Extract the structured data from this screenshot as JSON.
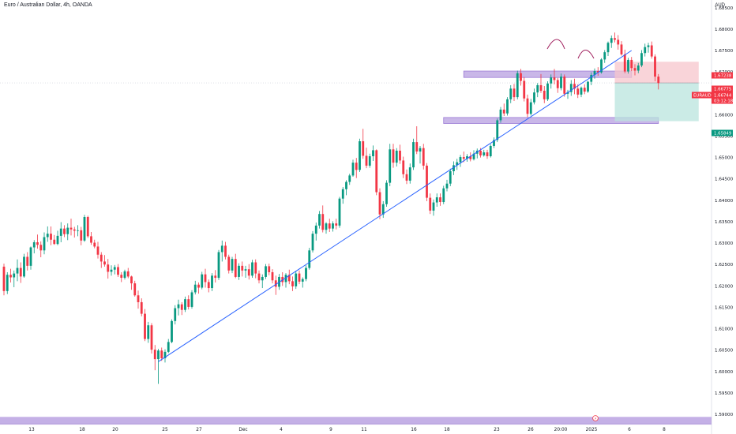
{
  "header": {
    "title": "Euro / Australian Dollar, 4h, OANDA",
    "currency": "AUD"
  },
  "chart_data": {
    "type": "candlestick",
    "symbol": "EURAUD",
    "y_range": [
      1.5878,
      1.6868
    ],
    "y_ticks": [
      "1.68500",
      "1.68000",
      "1.67500",
      "1.67000",
      "1.66500",
      "1.66000",
      "1.65500",
      "1.65000",
      "1.64500",
      "1.64000",
      "1.63500",
      "1.63000",
      "1.62500",
      "1.62000",
      "1.61500",
      "1.61000",
      "1.60500",
      "1.60000",
      "1.59500",
      "1.59000"
    ],
    "x_ticks": [
      "13",
      "18",
      "20",
      "25",
      "27",
      "Dec",
      "4",
      "9",
      "11",
      "16",
      "18",
      "23",
      "26",
      "20:00",
      "2025",
      "6",
      "8"
    ],
    "price_labels": [
      {
        "key": "upper",
        "price": 1.67238,
        "text": "1.67238",
        "color": "#f23645"
      },
      {
        "key": "current",
        "price": 1.66775,
        "text": "1.66775",
        "color": "#f23645"
      },
      {
        "key": "symbol",
        "price": 1.66744,
        "text": "1.66744",
        "symbol": "EURAUD",
        "countdown": "03:12:18",
        "color": "#f23645"
      },
      {
        "key": "target",
        "price": 1.65849,
        "text": "1.65849",
        "color": "#089981"
      }
    ],
    "colors": {
      "up": "#089981",
      "down": "#f23645",
      "trendline": "#2962ff",
      "zone": "#9c7cd6",
      "stop_zone": "#f7c6cc",
      "target_zone": "#b9e4dd",
      "head_shoulders": "#a0205e"
    },
    "candles": [
      [
        1.6245,
        1.6252,
        1.6178,
        1.6188
      ],
      [
        1.6188,
        1.6232,
        1.6181,
        1.6226
      ],
      [
        1.6226,
        1.624,
        1.6208,
        1.622
      ],
      [
        1.622,
        1.6236,
        1.6197,
        1.6229
      ],
      [
        1.6229,
        1.6262,
        1.6211,
        1.6242
      ],
      [
        1.6242,
        1.6255,
        1.6207,
        1.6222
      ],
      [
        1.6222,
        1.6275,
        1.6219,
        1.6268
      ],
      [
        1.6268,
        1.6279,
        1.6236,
        1.6247
      ],
      [
        1.6247,
        1.6292,
        1.6238,
        1.629
      ],
      [
        1.629,
        1.6307,
        1.6276,
        1.6302
      ],
      [
        1.6302,
        1.632,
        1.6287,
        1.6296
      ],
      [
        1.6296,
        1.6304,
        1.6267,
        1.6283
      ],
      [
        1.6283,
        1.6325,
        1.6274,
        1.6314
      ],
      [
        1.6314,
        1.6339,
        1.6303,
        1.6322
      ],
      [
        1.6322,
        1.6339,
        1.6295,
        1.6308
      ],
      [
        1.6308,
        1.6319,
        1.6296,
        1.6298
      ],
      [
        1.6298,
        1.6329,
        1.6295,
        1.6317
      ],
      [
        1.6317,
        1.6349,
        1.6302,
        1.6334
      ],
      [
        1.6334,
        1.6342,
        1.6314,
        1.6321
      ],
      [
        1.6321,
        1.6346,
        1.6307,
        1.6336
      ],
      [
        1.6336,
        1.6357,
        1.6318,
        1.6332
      ],
      [
        1.6332,
        1.6338,
        1.6313,
        1.6329
      ],
      [
        1.6329,
        1.6342,
        1.6316,
        1.633
      ],
      [
        1.633,
        1.6338,
        1.6295,
        1.6306
      ],
      [
        1.6306,
        1.6366,
        1.6303,
        1.6361
      ],
      [
        1.6361,
        1.6364,
        1.6312,
        1.6316
      ],
      [
        1.6316,
        1.6326,
        1.6296,
        1.6301
      ],
      [
        1.6301,
        1.6308,
        1.6288,
        1.6292
      ],
      [
        1.6292,
        1.6303,
        1.6264,
        1.6273
      ],
      [
        1.6273,
        1.6279,
        1.6242,
        1.6257
      ],
      [
        1.6257,
        1.6272,
        1.6245,
        1.625
      ],
      [
        1.625,
        1.6263,
        1.6217,
        1.6233
      ],
      [
        1.6233,
        1.6248,
        1.6224,
        1.6238
      ],
      [
        1.6238,
        1.6249,
        1.6227,
        1.6244
      ],
      [
        1.6244,
        1.6251,
        1.6221,
        1.6226
      ],
      [
        1.6226,
        1.6232,
        1.6209,
        1.6219
      ],
      [
        1.6219,
        1.6238,
        1.6215,
        1.6234
      ],
      [
        1.6234,
        1.6242,
        1.6218,
        1.6222
      ],
      [
        1.6222,
        1.6224,
        1.6191,
        1.6206
      ],
      [
        1.6206,
        1.6212,
        1.6175,
        1.6178
      ],
      [
        1.6178,
        1.6189,
        1.6147,
        1.6162
      ],
      [
        1.6162,
        1.6171,
        1.6129,
        1.6135
      ],
      [
        1.6135,
        1.6146,
        1.6071,
        1.6076
      ],
      [
        1.6076,
        1.6116,
        1.6067,
        1.6108
      ],
      [
        1.6108,
        1.6113,
        1.6042,
        1.6051
      ],
      [
        1.6051,
        1.6062,
        1.6003,
        1.6029
      ],
      [
        1.6029,
        1.6053,
        1.5971,
        1.6049
      ],
      [
        1.6049,
        1.6056,
        1.6025,
        1.6031
      ],
      [
        1.6031,
        1.6052,
        1.6021,
        1.6046
      ],
      [
        1.6046,
        1.6076,
        1.6043,
        1.6069
      ],
      [
        1.6069,
        1.6122,
        1.6066,
        1.6118
      ],
      [
        1.6118,
        1.6155,
        1.611,
        1.6148
      ],
      [
        1.6148,
        1.6168,
        1.6131,
        1.6157
      ],
      [
        1.6157,
        1.6162,
        1.6132,
        1.6144
      ],
      [
        1.6144,
        1.6175,
        1.6139,
        1.6169
      ],
      [
        1.6169,
        1.6178,
        1.6145,
        1.6151
      ],
      [
        1.6151,
        1.619,
        1.6147,
        1.6185
      ],
      [
        1.6185,
        1.6212,
        1.618,
        1.6203
      ],
      [
        1.6203,
        1.6208,
        1.6182,
        1.6196
      ],
      [
        1.6196,
        1.6233,
        1.6192,
        1.6227
      ],
      [
        1.6227,
        1.624,
        1.6196,
        1.6209
      ],
      [
        1.6209,
        1.6215,
        1.6185,
        1.6195
      ],
      [
        1.6195,
        1.623,
        1.6188,
        1.6224
      ],
      [
        1.6224,
        1.6237,
        1.6208,
        1.6219
      ],
      [
        1.6219,
        1.6284,
        1.6214,
        1.6279
      ],
      [
        1.6279,
        1.6306,
        1.6257,
        1.6294
      ],
      [
        1.6294,
        1.6303,
        1.6262,
        1.6268
      ],
      [
        1.6268,
        1.6273,
        1.6229,
        1.6236
      ],
      [
        1.6236,
        1.6268,
        1.623,
        1.6263
      ],
      [
        1.6263,
        1.6275,
        1.6218,
        1.6221
      ],
      [
        1.6221,
        1.6253,
        1.6214,
        1.6247
      ],
      [
        1.6247,
        1.6257,
        1.6222,
        1.6236
      ],
      [
        1.6236,
        1.6247,
        1.6219,
        1.6239
      ],
      [
        1.6239,
        1.6251,
        1.6215,
        1.6224
      ],
      [
        1.6224,
        1.6261,
        1.6219,
        1.6255
      ],
      [
        1.6255,
        1.6262,
        1.6218,
        1.6229
      ],
      [
        1.6229,
        1.6236,
        1.6206,
        1.6213
      ],
      [
        1.6213,
        1.6227,
        1.6195,
        1.6221
      ],
      [
        1.6221,
        1.6251,
        1.6216,
        1.6246
      ],
      [
        1.6246,
        1.6252,
        1.6225,
        1.6232
      ],
      [
        1.6232,
        1.6239,
        1.6206,
        1.6213
      ],
      [
        1.6213,
        1.6224,
        1.6179,
        1.6198
      ],
      [
        1.6198,
        1.6228,
        1.6191,
        1.6221
      ],
      [
        1.6221,
        1.6232,
        1.62,
        1.6209
      ],
      [
        1.6209,
        1.623,
        1.6196,
        1.6226
      ],
      [
        1.6226,
        1.6238,
        1.6204,
        1.6211
      ],
      [
        1.6211,
        1.6222,
        1.6188,
        1.6199
      ],
      [
        1.6199,
        1.6234,
        1.6193,
        1.6229
      ],
      [
        1.6229,
        1.6236,
        1.6204,
        1.621
      ],
      [
        1.621,
        1.622,
        1.6196,
        1.6216
      ],
      [
        1.6216,
        1.6248,
        1.6211,
        1.6242
      ],
      [
        1.6242,
        1.6289,
        1.6238,
        1.6283
      ],
      [
        1.6283,
        1.6328,
        1.6278,
        1.6322
      ],
      [
        1.6322,
        1.6348,
        1.6306,
        1.6341
      ],
      [
        1.6341,
        1.6375,
        1.6334,
        1.6368
      ],
      [
        1.6368,
        1.6388,
        1.6325,
        1.6331
      ],
      [
        1.6331,
        1.6349,
        1.6322,
        1.6346
      ],
      [
        1.6346,
        1.6357,
        1.6326,
        1.6334
      ],
      [
        1.6334,
        1.6351,
        1.6327,
        1.6346
      ],
      [
        1.6346,
        1.6357,
        1.6332,
        1.6341
      ],
      [
        1.6341,
        1.6408,
        1.6336,
        1.6404
      ],
      [
        1.6404,
        1.6431,
        1.6392,
        1.6426
      ],
      [
        1.6426,
        1.6447,
        1.6412,
        1.6443
      ],
      [
        1.6443,
        1.6462,
        1.6436,
        1.6458
      ],
      [
        1.6458,
        1.6495,
        1.6455,
        1.6488
      ],
      [
        1.6488,
        1.6499,
        1.6452,
        1.6471
      ],
      [
        1.6471,
        1.6544,
        1.6466,
        1.6538
      ],
      [
        1.6538,
        1.6567,
        1.6497,
        1.6504
      ],
      [
        1.6504,
        1.6523,
        1.6475,
        1.6481
      ],
      [
        1.6481,
        1.6509,
        1.6476,
        1.6503
      ],
      [
        1.6503,
        1.6528,
        1.6492,
        1.6517
      ],
      [
        1.6517,
        1.6519,
        1.6412,
        1.6419
      ],
      [
        1.6419,
        1.6428,
        1.6356,
        1.6367
      ],
      [
        1.6367,
        1.6398,
        1.6359,
        1.6391
      ],
      [
        1.6391,
        1.6447,
        1.6385,
        1.6441
      ],
      [
        1.6441,
        1.6532,
        1.6433,
        1.6519
      ],
      [
        1.6519,
        1.6532,
        1.6476,
        1.6488
      ],
      [
        1.6488,
        1.6522,
        1.6479,
        1.6516
      ],
      [
        1.6516,
        1.653,
        1.6485,
        1.6493
      ],
      [
        1.6493,
        1.6502,
        1.6452,
        1.6461
      ],
      [
        1.6461,
        1.6472,
        1.6438,
        1.6446
      ],
      [
        1.6446,
        1.6486,
        1.6439,
        1.6477
      ],
      [
        1.6477,
        1.6544,
        1.6471,
        1.6536
      ],
      [
        1.6536,
        1.6573,
        1.6508,
        1.6514
      ],
      [
        1.6514,
        1.6527,
        1.6486,
        1.6522
      ],
      [
        1.6522,
        1.6532,
        1.6472,
        1.6481
      ],
      [
        1.6481,
        1.6487,
        1.6398,
        1.6406
      ],
      [
        1.6406,
        1.6416,
        1.6368,
        1.6376
      ],
      [
        1.6376,
        1.6402,
        1.6364,
        1.6395
      ],
      [
        1.6395,
        1.6416,
        1.6385,
        1.6407
      ],
      [
        1.6407,
        1.6416,
        1.6387,
        1.6396
      ],
      [
        1.6396,
        1.6434,
        1.6391,
        1.6428
      ],
      [
        1.6428,
        1.6448,
        1.6421,
        1.6439
      ],
      [
        1.6439,
        1.6474,
        1.6433,
        1.6468
      ],
      [
        1.6468,
        1.6491,
        1.6459,
        1.6482
      ],
      [
        1.6482,
        1.6497,
        1.6471,
        1.6489
      ],
      [
        1.6489,
        1.6506,
        1.6478,
        1.6501
      ],
      [
        1.6501,
        1.6514,
        1.6489,
        1.6497
      ],
      [
        1.6497,
        1.6508,
        1.649,
        1.6503
      ],
      [
        1.6503,
        1.6512,
        1.6491,
        1.6496
      ],
      [
        1.6496,
        1.6517,
        1.6493,
        1.6509
      ],
      [
        1.6509,
        1.6521,
        1.6498,
        1.6516
      ],
      [
        1.6516,
        1.6522,
        1.65,
        1.6505
      ],
      [
        1.6505,
        1.6518,
        1.6502,
        1.6512
      ],
      [
        1.6512,
        1.6518,
        1.6497,
        1.6503
      ],
      [
        1.6503,
        1.6531,
        1.65,
        1.6527
      ],
      [
        1.6527,
        1.6547,
        1.6522,
        1.6541
      ],
      [
        1.6541,
        1.6591,
        1.6536,
        1.6587
      ],
      [
        1.6587,
        1.6618,
        1.6581,
        1.6612
      ],
      [
        1.6612,
        1.6626,
        1.6597,
        1.6603
      ],
      [
        1.6603,
        1.6641,
        1.6598,
        1.6636
      ],
      [
        1.6636,
        1.6669,
        1.6627,
        1.6661
      ],
      [
        1.6661,
        1.6672,
        1.6632,
        1.6641
      ],
      [
        1.6641,
        1.6703,
        1.6636,
        1.6697
      ],
      [
        1.6697,
        1.6707,
        1.6668,
        1.6679
      ],
      [
        1.6679,
        1.6688,
        1.6631,
        1.6638
      ],
      [
        1.6638,
        1.6647,
        1.6594,
        1.6602
      ],
      [
        1.6602,
        1.6637,
        1.6598,
        1.6629
      ],
      [
        1.6629,
        1.6661,
        1.6624,
        1.6652
      ],
      [
        1.6652,
        1.6674,
        1.6641,
        1.6669
      ],
      [
        1.6669,
        1.6695,
        1.6651,
        1.6656
      ],
      [
        1.6656,
        1.6667,
        1.6627,
        1.6636
      ],
      [
        1.6636,
        1.6678,
        1.6632,
        1.6673
      ],
      [
        1.6673,
        1.6694,
        1.6661,
        1.6687
      ],
      [
        1.6687,
        1.6707,
        1.6671,
        1.6681
      ],
      [
        1.6681,
        1.6686,
        1.6651,
        1.6662
      ],
      [
        1.6662,
        1.6696,
        1.6657,
        1.6689
      ],
      [
        1.6689,
        1.6694,
        1.6642,
        1.6649
      ],
      [
        1.6649,
        1.6658,
        1.6637,
        1.6653
      ],
      [
        1.6653,
        1.6681,
        1.6644,
        1.6672
      ],
      [
        1.6672,
        1.6684,
        1.6648,
        1.6661
      ],
      [
        1.6661,
        1.6671,
        1.6639,
        1.6647
      ],
      [
        1.6647,
        1.6666,
        1.6641,
        1.6663
      ],
      [
        1.6663,
        1.6671,
        1.6648,
        1.6654
      ],
      [
        1.6654,
        1.6679,
        1.6651,
        1.6677
      ],
      [
        1.6677,
        1.6699,
        1.6669,
        1.6693
      ],
      [
        1.6693,
        1.6708,
        1.6684,
        1.6702
      ],
      [
        1.6702,
        1.6711,
        1.6691,
        1.6699
      ],
      [
        1.6699,
        1.6732,
        1.6696,
        1.6729
      ],
      [
        1.6729,
        1.6751,
        1.6721,
        1.6746
      ],
      [
        1.6746,
        1.6771,
        1.6737,
        1.6768
      ],
      [
        1.6768,
        1.6785,
        1.6756,
        1.6779
      ],
      [
        1.6779,
        1.6792,
        1.6769,
        1.6775
      ],
      [
        1.6775,
        1.6786,
        1.6752,
        1.6764
      ],
      [
        1.6764,
        1.6772,
        1.6738,
        1.6741
      ],
      [
        1.6741,
        1.6752,
        1.6697,
        1.6701
      ],
      [
        1.6701,
        1.6733,
        1.6696,
        1.6728
      ],
      [
        1.6728,
        1.6735,
        1.6702,
        1.6709
      ],
      [
        1.6709,
        1.6718,
        1.6692,
        1.6703
      ],
      [
        1.6703,
        1.6721,
        1.6697,
        1.6715
      ],
      [
        1.6715,
        1.6751,
        1.6711,
        1.6744
      ],
      [
        1.6744,
        1.6766,
        1.6736,
        1.6758
      ],
      [
        1.6758,
        1.6768,
        1.6745,
        1.6762
      ],
      [
        1.6762,
        1.6771,
        1.6731,
        1.6736
      ],
      [
        1.6736,
        1.6741,
        1.6678,
        1.6689
      ],
      [
        1.6689,
        1.6695,
        1.6659,
        1.6674
      ]
    ],
    "lines": {
      "trendline": {
        "from": [
          46,
          1.6023
        ],
        "to": [
          187,
          1.675
        ]
      }
    },
    "zones": [
      {
        "name": "resistance-zone",
        "x": [
          137,
          187
        ],
        "y": [
          1.6687,
          1.6702
        ],
        "color": "#9c7cd6"
      },
      {
        "name": "support-zone",
        "x": [
          131,
          195
        ],
        "y": [
          1.65795,
          1.65935
        ],
        "color": "#9c7cd6"
      },
      {
        "name": "stop-zone",
        "x": [
          182,
          207
        ],
        "y": [
          1.66744,
          1.67238
        ],
        "color": "#f7c6cc"
      },
      {
        "name": "target-zone",
        "x": [
          182,
          207
        ],
        "y": [
          1.65849,
          1.66744
        ],
        "color": "#b9e4dd"
      }
    ],
    "bottom_zone": {
      "y": [
        1.5876,
        1.5894
      ],
      "color": "#9c7cd6"
    },
    "marker": {
      "text": "⚡",
      "x": 178
    }
  }
}
